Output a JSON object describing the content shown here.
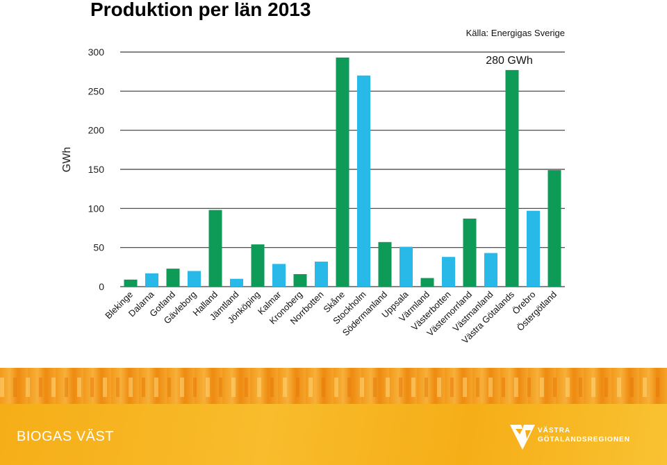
{
  "chart_data": {
    "type": "bar",
    "title": "Produktion per län 2013",
    "source": "Källa: Energigas Sverige",
    "annotation": "280 GWh",
    "ylabel": "GWh",
    "ylim": [
      0,
      300
    ],
    "yticks": [
      0,
      50,
      100,
      150,
      200,
      250,
      300
    ],
    "grid": true,
    "colors": {
      "green": "#0e9a57",
      "blue": "#29b9e8"
    },
    "categories": [
      "Blekinge",
      "Dalarna",
      "Gotland",
      "Gävleborg",
      "Halland",
      "Jämtland",
      "Jönköping",
      "Kalmar",
      "Kronoberg",
      "Norrbotten",
      "Skåne",
      "Stockholm",
      "Södermanland",
      "Uppsala",
      "Värmland",
      "Västerbotten",
      "Västernorrland",
      "Västmanland",
      "Västra Götalands",
      "Örebro",
      "Östergötland"
    ],
    "values": [
      9,
      17,
      23,
      20,
      98,
      10,
      54,
      29,
      16,
      32,
      293,
      270,
      57,
      51,
      11,
      38,
      87,
      43,
      277,
      97,
      149
    ],
    "bar_colors": [
      "green",
      "blue",
      "green",
      "blue",
      "green",
      "blue",
      "green",
      "blue",
      "green",
      "blue",
      "green",
      "blue",
      "green",
      "blue",
      "green",
      "blue",
      "green",
      "blue",
      "green",
      "blue",
      "green"
    ]
  },
  "footer": {
    "brand": "BIOGAS VÄST",
    "logo_line1": "VÄSTRA",
    "logo_line2": "GÖTALANDSREGIONEN"
  }
}
